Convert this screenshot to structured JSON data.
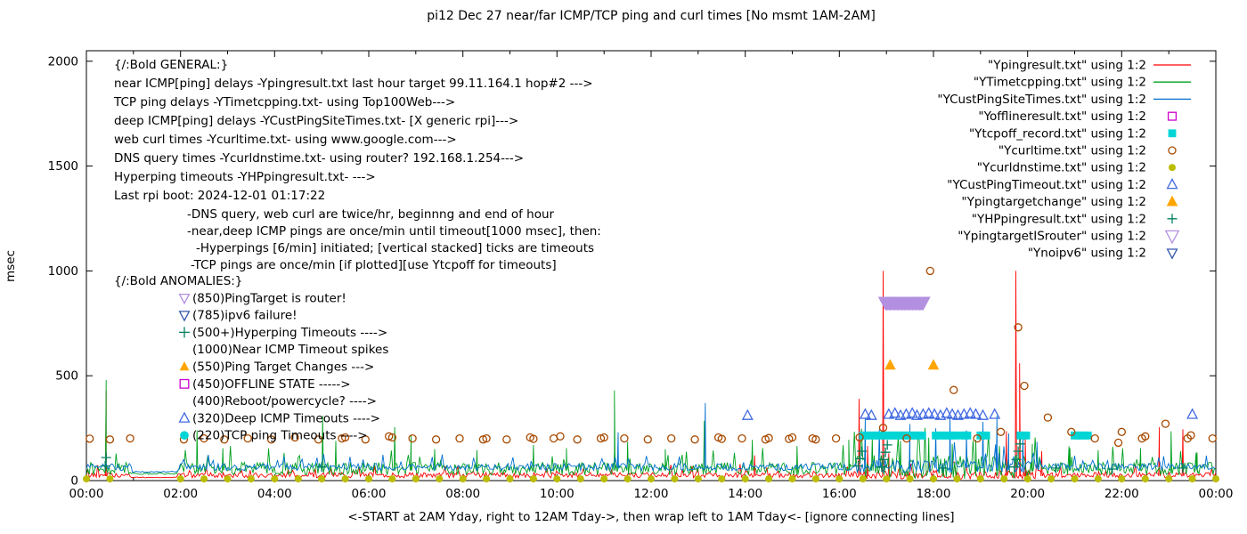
{
  "chart_data": {
    "type": "line+scatter",
    "title": "pi12 Dec 27  near/far ICMP/TCP ping and curl times [No msmt 1AM-2AM]",
    "xlabel": "<-START at 2AM Yday, right to 12AM Tday->, then wrap left to 1AM Tday<- [ignore connecting lines]",
    "ylabel": "msec",
    "xlim": [
      0,
      24
    ],
    "ylim": [
      0,
      2050
    ],
    "grid": false,
    "legend_position": "top-right",
    "xticks": {
      "major_labels": [
        "00:00",
        "02:00",
        "04:00",
        "06:00",
        "08:00",
        "10:00",
        "12:00",
        "14:00",
        "16:00",
        "18:00",
        "20:00",
        "22:00",
        "00:00"
      ],
      "major_positions": [
        0,
        2,
        4,
        6,
        8,
        10,
        12,
        14,
        16,
        18,
        20,
        22,
        24
      ],
      "minor_step": 1
    },
    "yticks": [
      0,
      500,
      1000,
      1500,
      2000
    ],
    "series": [
      {
        "id": "ypingresult",
        "label": "\"Ypingresult.txt\" using 1:2",
        "type": "line",
        "color": "#ff0000",
        "line": {
          "base": 22,
          "amp": 26,
          "seed": 1,
          "step": 0.03
        },
        "busy": {
          "from": 16.3,
          "to": 20.3,
          "mult": 1.6
        },
        "spikes": [
          [
            0.42,
            430
          ],
          [
            14.2,
            120
          ],
          [
            16.42,
            390
          ],
          [
            16.6,
            165
          ],
          [
            16.93,
            1000
          ],
          [
            17.05,
            130
          ],
          [
            19.55,
            235
          ],
          [
            19.75,
            1000
          ],
          [
            19.83,
            560
          ],
          [
            19.95,
            210
          ],
          [
            20.3,
            140
          ],
          [
            22.8,
            255
          ],
          [
            23.3,
            245
          ]
        ]
      },
      {
        "id": "ytimetcpping",
        "label": "\"YTimetcpping.txt\" using 1:2",
        "type": "line",
        "color": "#00a020",
        "line": {
          "base": 48,
          "amp": 60,
          "seed": 2,
          "step": 0.03
        },
        "busy": {
          "from": 16.3,
          "to": 20.3,
          "mult": 1.9
        },
        "spikes": [
          [
            0.42,
            480
          ],
          [
            2.35,
            240
          ],
          [
            2.9,
            155
          ],
          [
            5.02,
            310
          ],
          [
            5.3,
            190
          ],
          [
            6.55,
            255
          ],
          [
            6.9,
            215
          ],
          [
            7.4,
            150
          ],
          [
            8.3,
            145
          ],
          [
            9.5,
            170
          ],
          [
            10.2,
            155
          ],
          [
            11.22,
            430
          ],
          [
            11.5,
            185
          ],
          [
            12.3,
            150
          ],
          [
            13.13,
            285
          ],
          [
            14.15,
            195
          ],
          [
            15.1,
            165
          ],
          [
            16.2,
            195
          ],
          [
            16.7,
            210
          ],
          [
            17.3,
            190
          ],
          [
            17.9,
            205
          ],
          [
            18.4,
            175
          ],
          [
            18.9,
            195
          ],
          [
            19.4,
            165
          ],
          [
            20.1,
            175
          ],
          [
            20.9,
            155
          ],
          [
            21.5,
            145
          ],
          [
            22.4,
            155
          ],
          [
            23.05,
            235
          ],
          [
            23.6,
            135
          ]
        ]
      },
      {
        "id": "ycustpingsitetimes",
        "label": "\"YCustPingSiteTimes.txt\" using 1:2",
        "type": "line",
        "color": "#0070d0",
        "line": {
          "base": 60,
          "amp": 34,
          "seed": 3,
          "step": 0.035
        },
        "busy": {
          "from": 16.3,
          "to": 20.3,
          "mult": 1.9
        },
        "spikes": [
          [
            11.3,
            230
          ],
          [
            13.15,
            370
          ],
          [
            16.55,
            300
          ],
          [
            16.85,
            245
          ],
          [
            17.5,
            270
          ],
          [
            18.05,
            250
          ],
          [
            18.35,
            300
          ],
          [
            18.7,
            240
          ],
          [
            19.05,
            280
          ],
          [
            19.35,
            310
          ],
          [
            19.6,
            225
          ],
          [
            19.9,
            205
          ],
          [
            20.2,
            185
          ]
        ]
      },
      {
        "id": "yofflineresult",
        "label": "\"Yofflineresult.txt\" using 1:2",
        "type": "points",
        "marker": "square-open",
        "color": "#cc00cc",
        "msize": 5.5,
        "points": []
      },
      {
        "id": "ytcpoff_record",
        "label": "\"Ytcpoff_record.txt\" using 1:2",
        "type": "points",
        "marker": "square-filled",
        "color": "#00d5d5",
        "msize": 5.5,
        "points": [],
        "ranges": [
          {
            "from": 16.5,
            "to": 17.8,
            "step": 0.07,
            "y": 215
          },
          {
            "from": 18.05,
            "to": 18.5,
            "step": 0.07,
            "y": 215
          },
          {
            "from": 18.6,
            "to": 18.72,
            "step": 0.06,
            "y": 215
          },
          {
            "from": 19.0,
            "to": 19.15,
            "step": 0.06,
            "y": 215
          },
          {
            "from": 19.85,
            "to": 20.0,
            "step": 0.06,
            "y": 215
          },
          {
            "from": 21.0,
            "to": 21.3,
            "step": 0.07,
            "y": 215
          }
        ]
      },
      {
        "id": "ycurltime",
        "label": "\"Ycurltime.txt\" using 1:2",
        "type": "points",
        "marker": "circle-open",
        "color": "#a84a00",
        "msize": 5,
        "points": [
          [
            0.07,
            200
          ],
          [
            0.5,
            196
          ],
          [
            0.93,
            201
          ],
          [
            2.07,
            196
          ],
          [
            2.5,
            201
          ],
          [
            2.93,
            196
          ],
          [
            3.43,
            201
          ],
          [
            3.93,
            196
          ],
          [
            4.43,
            206
          ],
          [
            4.93,
            196
          ],
          [
            5.43,
            201
          ],
          [
            5.5,
            206
          ],
          [
            5.93,
            196
          ],
          [
            6.43,
            211
          ],
          [
            6.5,
            206
          ],
          [
            6.93,
            201
          ],
          [
            7.43,
            196
          ],
          [
            7.93,
            201
          ],
          [
            8.43,
            196
          ],
          [
            8.5,
            201
          ],
          [
            8.93,
            196
          ],
          [
            9.43,
            206
          ],
          [
            9.5,
            199
          ],
          [
            9.93,
            201
          ],
          [
            10.07,
            211
          ],
          [
            10.43,
            196
          ],
          [
            10.93,
            201
          ],
          [
            11.0,
            206
          ],
          [
            11.43,
            201
          ],
          [
            11.93,
            196
          ],
          [
            12.43,
            201
          ],
          [
            12.93,
            196
          ],
          [
            13.43,
            206
          ],
          [
            13.5,
            199
          ],
          [
            13.93,
            201
          ],
          [
            14.43,
            196
          ],
          [
            14.5,
            203
          ],
          [
            14.93,
            199
          ],
          [
            15.0,
            206
          ],
          [
            15.43,
            201
          ],
          [
            15.5,
            196
          ],
          [
            15.93,
            201
          ],
          [
            16.43,
            206
          ],
          [
            16.93,
            252
          ],
          [
            17.43,
            201
          ],
          [
            17.93,
            1000
          ],
          [
            18.43,
            432
          ],
          [
            18.93,
            201
          ],
          [
            19.43,
            232
          ],
          [
            19.8,
            731
          ],
          [
            19.93,
            452
          ],
          [
            20.43,
            301
          ],
          [
            20.93,
            232
          ],
          [
            21.43,
            201
          ],
          [
            21.93,
            181
          ],
          [
            22.0,
            232
          ],
          [
            22.43,
            201
          ],
          [
            22.5,
            211
          ],
          [
            22.93,
            271
          ],
          [
            23.4,
            201
          ],
          [
            23.47,
            216
          ],
          [
            23.93,
            201
          ]
        ]
      },
      {
        "id": "ycurldnstime",
        "label": "\"Ycurldnstime.txt\" using 1:2",
        "type": "points",
        "marker": "circle-filled",
        "color": "#bcbc00",
        "msize": 5,
        "points": [],
        "ranges": [
          {
            "from": 0,
            "to": 24,
            "step": 0.5,
            "y": 8,
            "gap": [
              0.9,
              1.9
            ]
          }
        ]
      },
      {
        "id": "ycustpingtimeout",
        "label": "\"YCustPingTimeout.txt\" using 1:2",
        "type": "points",
        "marker": "triangle-up-open",
        "color": "#4169e1",
        "msize": 6,
        "points": [
          [
            14.05,
            310
          ],
          [
            16.55,
            315
          ],
          [
            16.68,
            310
          ],
          [
            17.05,
            315
          ],
          [
            17.18,
            320
          ],
          [
            17.3,
            310
          ],
          [
            17.42,
            315
          ],
          [
            17.55,
            320
          ],
          [
            17.65,
            310
          ],
          [
            17.78,
            315
          ],
          [
            17.9,
            320
          ],
          [
            18.02,
            315
          ],
          [
            18.15,
            310
          ],
          [
            18.28,
            320
          ],
          [
            18.4,
            315
          ],
          [
            18.52,
            310
          ],
          [
            18.65,
            315
          ],
          [
            18.78,
            320
          ],
          [
            18.9,
            315
          ],
          [
            19.05,
            310
          ],
          [
            19.3,
            315
          ],
          [
            23.5,
            315
          ]
        ]
      },
      {
        "id": "ypingtargetchange",
        "label": "\"Ypingtargetchange\" using 1:2",
        "type": "points",
        "marker": "triangle-up-filled",
        "color": "#ffa500",
        "msize": 7,
        "points": [
          [
            17.08,
            550
          ],
          [
            18.0,
            550
          ]
        ]
      },
      {
        "id": "yhppingresult",
        "label": "\"YHPpingresult.txt\" using 1:2",
        "type": "points",
        "marker": "plus",
        "color": "#008060",
        "msize": 5.5,
        "points": [
          [
            0.4,
            70
          ],
          [
            0.42,
            110
          ],
          [
            5.0,
            65
          ],
          [
            16.4,
            70
          ],
          [
            16.44,
            105
          ],
          [
            16.48,
            140
          ],
          [
            16.9,
            65
          ],
          [
            16.94,
            100
          ],
          [
            16.98,
            135
          ],
          [
            17.02,
            170
          ],
          [
            18.2,
            60
          ],
          [
            19.72,
            65
          ],
          [
            19.76,
            100
          ],
          [
            19.8,
            140
          ],
          [
            19.84,
            175
          ],
          [
            20.6,
            60
          ],
          [
            21.8,
            55
          ],
          [
            23.3,
            60
          ]
        ]
      },
      {
        "id": "ypingtargetisrouter",
        "label": "\"YpingtargetISrouter\" using 1:2",
        "type": "points",
        "marker": "triangle-down-open",
        "color": "#b28fe0",
        "msize": 8,
        "points": [],
        "ranges": [
          {
            "from": 16.98,
            "to": 17.78,
            "step": 0.025,
            "y": 850
          }
        ]
      },
      {
        "id": "ynoipv6",
        "label": "\"Ynoipv6\" using 1:2",
        "type": "points",
        "marker": "triangle-down-open",
        "color": "#3355aa",
        "msize": 6,
        "points": []
      }
    ],
    "annotations": {
      "general": [
        {
          "text": "{/:Bold GENERAL:}",
          "indent": 0
        },
        {
          "text": "near ICMP[ping] delays -Ypingresult.txt last hour target 99.11.164.1 hop#2 --->",
          "indent": 0
        },
        {
          "text": "TCP ping delays -YTimetcpping.txt- using Top100Web--->",
          "indent": 0
        },
        {
          "text": "deep ICMP[ping] delays -YCustPingSiteTimes.txt- [X generic rpi]--->",
          "indent": 0
        },
        {
          "text": "web curl times -Ycurltime.txt- using www.google.com--->",
          "indent": 0
        },
        {
          "text": "DNS query times -Ycurldnstime.txt- using router? 192.168.1.254--->",
          "indent": 0
        },
        {
          "text": "Hyperping timeouts -YHPpingresult.txt- --->",
          "indent": 0
        },
        {
          "text": "Last rpi boot: 2024-12-01 01:17:22",
          "indent": 0
        },
        {
          "text": "-DNS query, web curl are twice/hr, beginnng and end of hour",
          "indent": 1
        },
        {
          "text": "-near,deep ICMP pings are once/min until timeout[1000 msec], then:",
          "indent": 1
        },
        {
          "text": "-Hyperpings [6/min] initiated; [vertical stacked] ticks are timeouts",
          "indent": 2
        },
        {
          "text": "-TCP pings are once/min [if plotted][use Ytcpoff for timeouts]",
          "indent": 3
        }
      ],
      "anomalies": [
        {
          "text": "{/:Bold ANOMALIES:}"
        },
        {
          "text": "(850)PingTarget is router!",
          "marker": "triangle-down-open",
          "marker_color": "#b28fe0"
        },
        {
          "text": "(785)ipv6 failure!",
          "marker": "triangle-down-open",
          "marker_color": "#3355aa"
        },
        {
          "text": "(500+)Hyperping Timeouts ---->",
          "marker": "plus",
          "marker_color": "#008060"
        },
        {
          "text": "(1000)Near ICMP Timeout spikes"
        },
        {
          "text": "(550)Ping Target Changes --->",
          "marker": "triangle-up-filled",
          "marker_color": "#ffa500"
        },
        {
          "text": "(450)OFFLINE STATE ----->",
          "marker": "square-open",
          "marker_color": "#cc00cc"
        },
        {
          "text": "(400)Reboot/powercycle? ---->"
        },
        {
          "text": "(320)Deep ICMP Timeouts ---->",
          "marker": "triangle-up-open",
          "marker_color": "#4169e1"
        },
        {
          "text": "(220)TCP ping Timeouts ---->",
          "marker": "circle-filled",
          "marker_color": "#00d5d5"
        }
      ]
    }
  }
}
